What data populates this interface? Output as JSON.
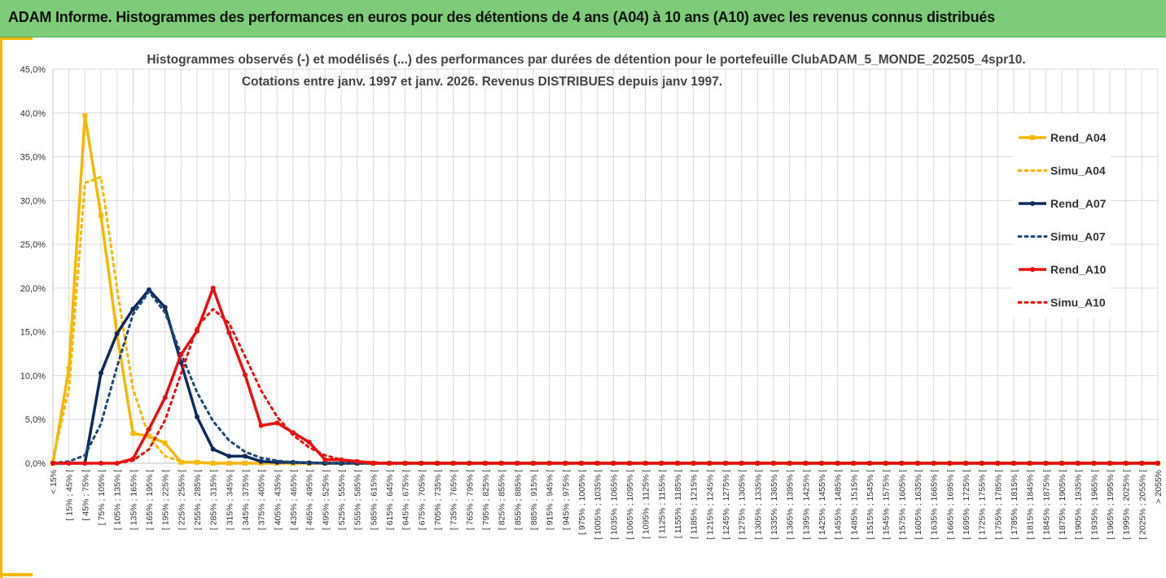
{
  "header": {
    "title": "ADAM Informe. Histogrammes des performances en euros pour des détentions de 4 ans (A04) à 10 ans (A10) avec les revenus connus distribués"
  },
  "colors": {
    "banner": "#7ecb7a",
    "accent": "#f5b800",
    "a04": "#f5b800",
    "a07": "#0f2a5c",
    "a10": "#e81010"
  },
  "chart_data": {
    "type": "line",
    "title": [
      "Histogrammes observés (-) et modélisés (...) des performances par durées de détention pour le portefeuille ClubADAM_5_MONDE_202505_4spr10.",
      "Cotations entre janv. 1997 et janv. 2026. Revenus DISTRIBUES depuis janv 1997."
    ],
    "yticks": [
      "0,0%",
      "5,0%",
      "10,0%",
      "15,0%",
      "20,0%",
      "25,0%",
      "30,0%",
      "35,0%",
      "40,0%",
      "45,0%"
    ],
    "ylim": [
      0,
      45
    ],
    "grid": true,
    "legend_position": "right",
    "categories": [
      "< 15%",
      "[ 15% ; 45% [",
      "[ 45% ; 75% [",
      "[ 75% ; 105% [",
      "[ 105% ; 135% [",
      "[ 135% ; 165% [",
      "[ 165% ; 195% [",
      "[ 195% ; 225% [",
      "[ 225% ; 255% [",
      "[ 255% ; 285% [",
      "[ 285% ; 315% [",
      "[ 315% ; 345% [",
      "[ 345% ; 375% [",
      "[ 375% ; 405% [",
      "[ 405% ; 435% [",
      "[ 435% ; 465% [",
      "[ 465% ; 495% [",
      "[ 495% ; 525% [",
      "[ 525% ; 555% [",
      "[ 555% ; 585% [",
      "[ 585% ; 615% [",
      "[ 615% ; 645% [",
      "[ 645% ; 675% [",
      "[ 675% ; 705% [",
      "[ 705% ; 735% [",
      "[ 735% ; 765% [",
      "[ 765% ; 795% [",
      "[ 795% ; 825% [",
      "[ 825% ; 855% [",
      "[ 855% ; 885% [",
      "[ 885% ; 915% [",
      "[ 915% ; 945% [",
      "[ 945% ; 975% [",
      "[ 975% ; 1005% [",
      "[ 1005% ; 1035% [",
      "[ 1035% ; 1065% [",
      "[ 1065% ; 1095% [",
      "[ 1095% ; 1125% [",
      "[ 1125% ; 1155% [",
      "[ 1155% ; 1185% [",
      "[ 1185% ; 1215% [",
      "[ 1215% ; 1245% [",
      "[ 1245% ; 1275% [",
      "[ 1275% ; 1305% [",
      "[ 1305% ; 1335% [",
      "[ 1335% ; 1365% [",
      "[ 1365% ; 1395% [",
      "[ 1395% ; 1425% [",
      "[ 1425% ; 1455% [",
      "[ 1455% ; 1485% [",
      "[ 1485% ; 1515% [",
      "[ 1515% ; 1545% [",
      "[ 1545% ; 1575% [",
      "[ 1575% ; 1605% [",
      "[ 1605% ; 1635% [",
      "[ 1635% ; 1665% [",
      "[ 1665% ; 1695% [",
      "[ 1695% ; 1725% [",
      "[ 1725% ; 1755% [",
      "[ 1755% ; 1785% [",
      "[ 1785% ; 1815% [",
      "[ 1815% ; 1845% [",
      "[ 1845% ; 1875% [",
      "[ 1875% ; 1905% [",
      "[ 1905% ; 1935% [",
      "[ 1935% ; 1965% [",
      "[ 1965% ; 1995% [",
      "[ 1995% ; 2025% [",
      "[ 2025% ; 2055% [",
      "> 2055%"
    ],
    "series": [
      {
        "name": "Rend_A04",
        "style": "solid",
        "marker": "square",
        "color": "#f5b800",
        "values": [
          0,
          10.8,
          39.7,
          28.3,
          14.8,
          3.4,
          3.1,
          2.3,
          0.1,
          0.1,
          0,
          0,
          0,
          0,
          0,
          0,
          0,
          0,
          0,
          0,
          0,
          0,
          0,
          0,
          0,
          0,
          0,
          0,
          0,
          0,
          0,
          0,
          0,
          0,
          0,
          0,
          0,
          0,
          0,
          0,
          0,
          0,
          0,
          0,
          0,
          0,
          0,
          0,
          0,
          0,
          0,
          0,
          0,
          0,
          0,
          0,
          0,
          0,
          0,
          0,
          0,
          0,
          0,
          0,
          0,
          0,
          0,
          0,
          0,
          0
        ]
      },
      {
        "name": "Simu_A04",
        "style": "dotted",
        "marker": "none",
        "color": "#f5b800",
        "values": [
          0.4,
          8.5,
          32.0,
          32.7,
          20.0,
          8.5,
          3.0,
          0.8,
          0.2,
          0.05,
          0,
          0,
          0,
          0,
          0,
          0,
          0,
          0,
          0,
          0,
          0,
          0,
          0,
          0,
          0,
          0,
          0,
          0,
          0,
          0,
          0,
          0,
          0,
          0,
          0,
          0,
          0,
          0,
          0,
          0,
          0,
          0,
          0,
          0,
          0,
          0,
          0,
          0,
          0,
          0,
          0,
          0,
          0,
          0,
          0,
          0,
          0,
          0,
          0,
          0,
          0,
          0,
          0,
          0,
          0,
          0,
          0,
          0,
          0,
          0
        ]
      },
      {
        "name": "Rend_A07",
        "style": "solid",
        "marker": "circle",
        "color": "#0f2a5c",
        "values": [
          0,
          0,
          0,
          10.3,
          14.8,
          17.6,
          19.8,
          17.8,
          11.5,
          5.3,
          1.6,
          0.8,
          0.8,
          0.2,
          0.1,
          0.1,
          0.05,
          0,
          0,
          0,
          0,
          0,
          0,
          0,
          0,
          0,
          0,
          0,
          0,
          0,
          0,
          0,
          0,
          0,
          0,
          0,
          0,
          0,
          0,
          0,
          0,
          0,
          0,
          0,
          0,
          0,
          0,
          0,
          0,
          0,
          0,
          0,
          0,
          0,
          0,
          0,
          0,
          0,
          0,
          0,
          0,
          0,
          0,
          0,
          0,
          0,
          0,
          0,
          0,
          0
        ]
      },
      {
        "name": "Simu_A07",
        "style": "dotted",
        "marker": "none",
        "color": "#1e4a7a",
        "values": [
          0,
          0.2,
          0.9,
          4.5,
          11.0,
          17.0,
          19.6,
          17.2,
          12.5,
          8.1,
          4.8,
          2.6,
          1.3,
          0.6,
          0.3,
          0.1,
          0.05,
          0,
          0,
          0,
          0,
          0,
          0,
          0,
          0,
          0,
          0,
          0,
          0,
          0,
          0,
          0,
          0,
          0,
          0,
          0,
          0,
          0,
          0,
          0,
          0,
          0,
          0,
          0,
          0,
          0,
          0,
          0,
          0,
          0,
          0,
          0,
          0,
          0,
          0,
          0,
          0,
          0,
          0,
          0,
          0,
          0,
          0,
          0,
          0,
          0,
          0,
          0,
          0,
          0
        ]
      },
      {
        "name": "Rend_A10",
        "style": "solid",
        "marker": "circle",
        "color": "#e81010",
        "values": [
          0,
          0,
          0,
          0,
          0,
          0.5,
          3.9,
          7.5,
          12.4,
          15.1,
          20.0,
          14.9,
          10.1,
          4.3,
          4.6,
          3.5,
          2.4,
          0.4,
          0.4,
          0.2,
          0,
          0,
          0,
          0,
          0,
          0,
          0,
          0,
          0,
          0,
          0,
          0,
          0,
          0,
          0,
          0,
          0,
          0,
          0,
          0,
          0,
          0,
          0,
          0,
          0,
          0,
          0,
          0,
          0,
          0,
          0,
          0,
          0,
          0,
          0,
          0,
          0,
          0,
          0,
          0,
          0,
          0,
          0,
          0,
          0,
          0,
          0,
          0,
          0,
          0
        ]
      },
      {
        "name": "Simu_A10",
        "style": "dotted",
        "marker": "none",
        "color": "#e81010",
        "values": [
          0,
          0,
          0,
          0,
          0,
          0.3,
          1.6,
          4.9,
          10.2,
          15.6,
          17.6,
          16.0,
          12.2,
          8.3,
          5.3,
          3.2,
          1.8,
          0.9,
          0.4,
          0.2,
          0.1,
          0,
          0,
          0,
          0,
          0,
          0,
          0,
          0,
          0,
          0,
          0,
          0,
          0,
          0,
          0,
          0,
          0,
          0,
          0,
          0,
          0,
          0,
          0,
          0,
          0,
          0,
          0,
          0,
          0,
          0,
          0,
          0,
          0,
          0,
          0,
          0,
          0,
          0,
          0,
          0,
          0,
          0,
          0,
          0,
          0,
          0,
          0,
          0,
          0
        ]
      }
    ]
  }
}
